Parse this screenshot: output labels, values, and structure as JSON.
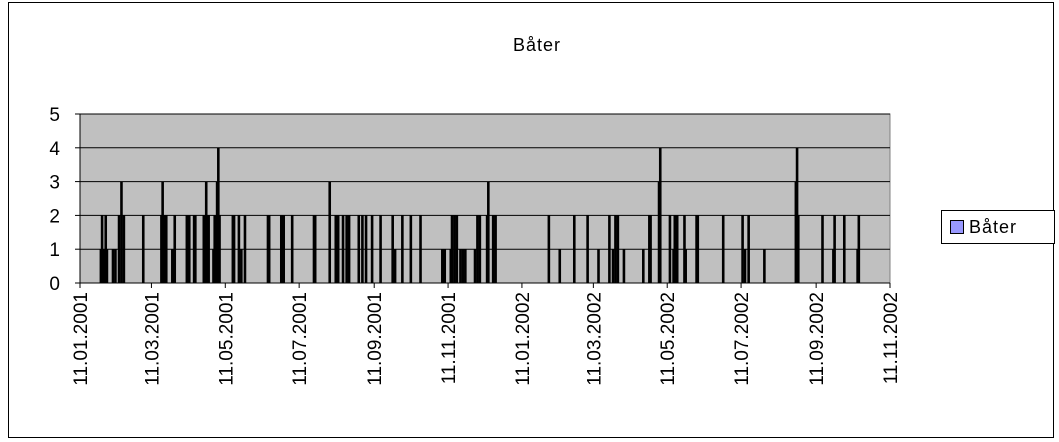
{
  "chart_data": {
    "type": "bar",
    "title": "Båter",
    "xlabel": "",
    "ylabel": "",
    "ylim": [
      0,
      5
    ],
    "yticks": [
      0,
      1,
      2,
      3,
      4,
      5
    ],
    "x_tick_labels": [
      "11.01.2001",
      "11.03.2001",
      "11.05.2001",
      "11.07.2001",
      "11.09.2001",
      "11.11.2001",
      "11.01.2002",
      "11.03.2002",
      "11.05.2002",
      "11.07.2002",
      "11.09.2002",
      "11.11.2002"
    ],
    "x_range": [
      "11.01.2001",
      "11.11.2002"
    ],
    "grid": true,
    "legend_position": "right",
    "series": [
      {
        "name": "Båter",
        "color": "#9999ff",
        "points": [
          {
            "date": "2001-01-28",
            "value": 1
          },
          {
            "date": "2001-01-29",
            "value": 2
          },
          {
            "date": "2001-01-30",
            "value": 1
          },
          {
            "date": "2001-02-01",
            "value": 2
          },
          {
            "date": "2001-02-02",
            "value": 1
          },
          {
            "date": "2001-02-07",
            "value": 1
          },
          {
            "date": "2001-02-09",
            "value": 1
          },
          {
            "date": "2001-02-12",
            "value": 2
          },
          {
            "date": "2001-02-14",
            "value": 3
          },
          {
            "date": "2001-02-16",
            "value": 2
          },
          {
            "date": "2001-03-04",
            "value": 2
          },
          {
            "date": "2001-03-19",
            "value": 2
          },
          {
            "date": "2001-03-20",
            "value": 3
          },
          {
            "date": "2001-03-21",
            "value": 2
          },
          {
            "date": "2001-03-22",
            "value": 2
          },
          {
            "date": "2001-03-23",
            "value": 2
          },
          {
            "date": "2001-03-28",
            "value": 1
          },
          {
            "date": "2001-03-30",
            "value": 2
          },
          {
            "date": "2001-04-09",
            "value": 2
          },
          {
            "date": "2001-04-11",
            "value": 2
          },
          {
            "date": "2001-04-15",
            "value": 2
          },
          {
            "date": "2001-04-16",
            "value": 2
          },
          {
            "date": "2001-04-23",
            "value": 2
          },
          {
            "date": "2001-04-25",
            "value": 3
          },
          {
            "date": "2001-04-27",
            "value": 2
          },
          {
            "date": "2001-05-01",
            "value": 1
          },
          {
            "date": "2001-05-02",
            "value": 2
          },
          {
            "date": "2001-05-04",
            "value": 3
          },
          {
            "date": "2001-05-05",
            "value": 4
          },
          {
            "date": "2001-05-06",
            "value": 2
          },
          {
            "date": "2001-05-17",
            "value": 2
          },
          {
            "date": "2001-05-18",
            "value": 2
          },
          {
            "date": "2001-05-22",
            "value": 2
          },
          {
            "date": "2001-05-24",
            "value": 1
          },
          {
            "date": "2001-05-27",
            "value": 2
          },
          {
            "date": "2001-06-15",
            "value": 2
          },
          {
            "date": "2001-06-16",
            "value": 2
          },
          {
            "date": "2001-06-26",
            "value": 2
          },
          {
            "date": "2001-06-28",
            "value": 2
          },
          {
            "date": "2001-07-05",
            "value": 2
          },
          {
            "date": "2001-07-23",
            "value": 2
          },
          {
            "date": "2001-07-24",
            "value": 2
          },
          {
            "date": "2001-08-05",
            "value": 3
          },
          {
            "date": "2001-08-10",
            "value": 2
          },
          {
            "date": "2001-08-12",
            "value": 2
          },
          {
            "date": "2001-08-16",
            "value": 2
          },
          {
            "date": "2001-08-19",
            "value": 2
          },
          {
            "date": "2001-08-21",
            "value": 2
          },
          {
            "date": "2001-08-29",
            "value": 2
          },
          {
            "date": "2001-09-01",
            "value": 2
          },
          {
            "date": "2001-09-04",
            "value": 2
          },
          {
            "date": "2001-09-09",
            "value": 2
          },
          {
            "date": "2001-09-16",
            "value": 2
          },
          {
            "date": "2001-09-26",
            "value": 2
          },
          {
            "date": "2001-09-28",
            "value": 1
          },
          {
            "date": "2001-10-04",
            "value": 2
          },
          {
            "date": "2001-10-11",
            "value": 2
          },
          {
            "date": "2001-10-19",
            "value": 2
          },
          {
            "date": "2001-11-06",
            "value": 1
          },
          {
            "date": "2001-11-08",
            "value": 1
          },
          {
            "date": "2001-11-13",
            "value": 1
          },
          {
            "date": "2001-11-14",
            "value": 2
          },
          {
            "date": "2001-11-16",
            "value": 2
          },
          {
            "date": "2001-11-18",
            "value": 2
          },
          {
            "date": "2001-11-21",
            "value": 1
          },
          {
            "date": "2001-11-23",
            "value": 1
          },
          {
            "date": "2001-11-25",
            "value": 1
          },
          {
            "date": "2001-12-03",
            "value": 1
          },
          {
            "date": "2001-12-05",
            "value": 2
          },
          {
            "date": "2001-12-07",
            "value": 2
          },
          {
            "date": "2001-12-13",
            "value": 2
          },
          {
            "date": "2001-12-14",
            "value": 3
          },
          {
            "date": "2001-12-18",
            "value": 2
          },
          {
            "date": "2001-12-20",
            "value": 2
          },
          {
            "date": "2002-02-02",
            "value": 2
          },
          {
            "date": "2002-02-11",
            "value": 1
          },
          {
            "date": "2002-02-23",
            "value": 2
          },
          {
            "date": "2002-03-06",
            "value": 2
          },
          {
            "date": "2002-03-15",
            "value": 1
          },
          {
            "date": "2002-03-24",
            "value": 2
          },
          {
            "date": "2002-03-27",
            "value": 1
          },
          {
            "date": "2002-03-29",
            "value": 2
          },
          {
            "date": "2002-03-31",
            "value": 2
          },
          {
            "date": "2002-04-05",
            "value": 1
          },
          {
            "date": "2002-04-21",
            "value": 1
          },
          {
            "date": "2002-04-26",
            "value": 2
          },
          {
            "date": "2002-04-27",
            "value": 2
          },
          {
            "date": "2002-05-04",
            "value": 3
          },
          {
            "date": "2002-05-05",
            "value": 4
          },
          {
            "date": "2002-05-13",
            "value": 2
          },
          {
            "date": "2002-05-16",
            "value": 1
          },
          {
            "date": "2002-05-17",
            "value": 2
          },
          {
            "date": "2002-05-19",
            "value": 2
          },
          {
            "date": "2002-05-25",
            "value": 2
          },
          {
            "date": "2002-05-26",
            "value": 1
          },
          {
            "date": "2002-06-04",
            "value": 2
          },
          {
            "date": "2002-06-05",
            "value": 2
          },
          {
            "date": "2002-06-26",
            "value": 2
          },
          {
            "date": "2002-07-12",
            "value": 2
          },
          {
            "date": "2002-07-14",
            "value": 1
          },
          {
            "date": "2002-07-17",
            "value": 2
          },
          {
            "date": "2002-07-30",
            "value": 1
          },
          {
            "date": "2002-08-25",
            "value": 3
          },
          {
            "date": "2002-08-26",
            "value": 4
          },
          {
            "date": "2002-08-27",
            "value": 2
          },
          {
            "date": "2002-09-16",
            "value": 2
          },
          {
            "date": "2002-09-25",
            "value": 1
          },
          {
            "date": "2002-09-26",
            "value": 2
          },
          {
            "date": "2002-10-04",
            "value": 2
          },
          {
            "date": "2002-10-15",
            "value": 1
          },
          {
            "date": "2002-10-16",
            "value": 2
          }
        ]
      }
    ]
  }
}
